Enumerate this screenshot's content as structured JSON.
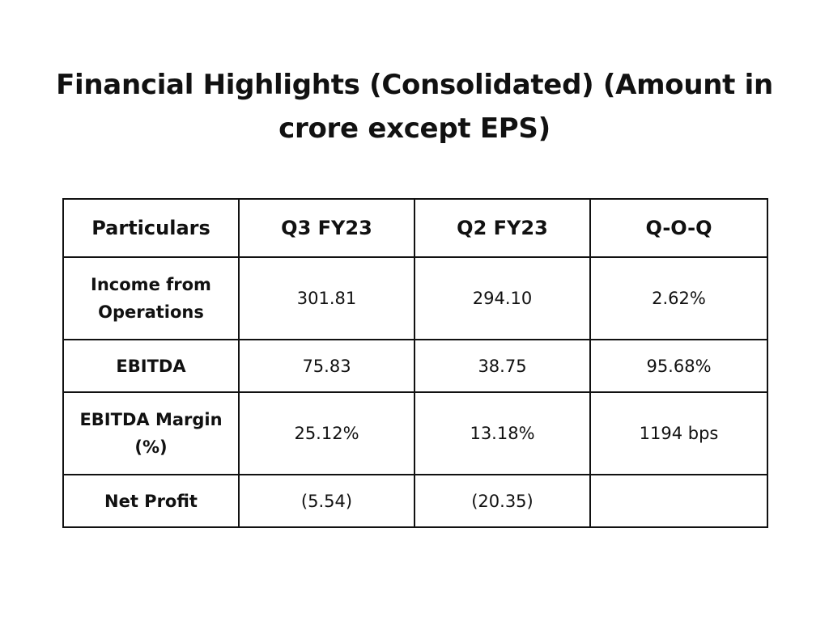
{
  "title": {
    "line1": "Financial Highlights (Consolidated) (Amount in",
    "line2": "crore except EPS)"
  },
  "table": {
    "headers": [
      "Particulars",
      "Q3 FY23",
      "Q2 FY23",
      "Q-O-Q"
    ],
    "rows": [
      {
        "particular": "Income from Operations",
        "q3": "301.81",
        "q2": "294.10",
        "qoq": "2.62%"
      },
      {
        "particular": "EBITDA",
        "q3": "75.83",
        "q2": "38.75",
        "qoq": "95.68%"
      },
      {
        "particular": "EBITDA Margin (%)",
        "q3": "25.12%",
        "q2": "13.18%",
        "qoq": "1194 bps"
      },
      {
        "particular": "Net Profit",
        "q3": "(5.54)",
        "q2": "(20.35)",
        "qoq": ""
      }
    ]
  }
}
